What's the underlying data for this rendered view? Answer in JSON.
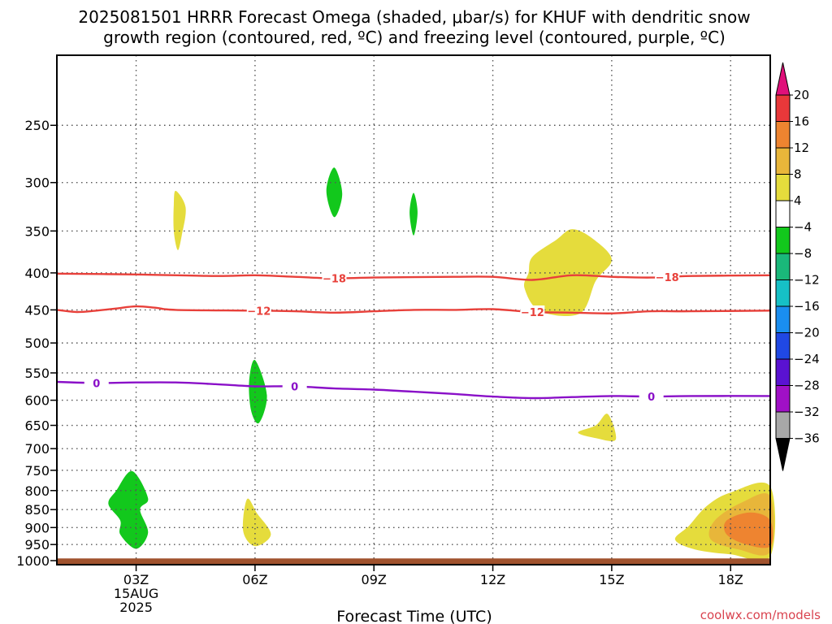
{
  "title_line1": "2025081501 HRRR Forecast Omega (shaded, μbar/s) for KHUF with dendritic snow",
  "title_line2": "growth region (contoured, red, ºC) and freezing level (contoured, purple, ºC)",
  "credit": "coolwx.com/models",
  "chart_data": {
    "type": "contour",
    "title": "2025081501 HRRR Forecast Omega (shaded, μbar/s) for KHUF with dendritic snow growth region (contoured, red, ºC) and freezing level (contoured, purple, ºC)",
    "xlabel": "Forecast Time (UTC)",
    "ylabel": "",
    "x_ticks": [
      {
        "h": 3,
        "label": "03Z",
        "sub1": "15AUG",
        "sub2": "2025"
      },
      {
        "h": 6,
        "label": "06Z",
        "sub1": "",
        "sub2": ""
      },
      {
        "h": 9,
        "label": "09Z",
        "sub1": "",
        "sub2": ""
      },
      {
        "h": 12,
        "label": "12Z",
        "sub1": "",
        "sub2": ""
      },
      {
        "h": 15,
        "label": "15Z",
        "sub1": "",
        "sub2": ""
      },
      {
        "h": 18,
        "label": "18Z",
        "sub1": "",
        "sub2": ""
      }
    ],
    "xlim_hours_utc": [
      1,
      19
    ],
    "y_ticks_hpa": [
      250,
      300,
      350,
      400,
      450,
      500,
      550,
      600,
      650,
      700,
      750,
      800,
      850,
      900,
      950,
      1000
    ],
    "ylim_hpa": [
      200,
      1013
    ],
    "y_scale": "log",
    "grid": true,
    "surface_pressure_hpa": 993,
    "colors": {
      "surface": "#a0522d",
      "dgz": "#e8403a",
      "freezing": "#8a10c8",
      "grid": "#555555"
    },
    "colorbar": {
      "ticks": [
        "20",
        "16",
        "12",
        "8",
        "4",
        "−4",
        "−8",
        "−12",
        "−16",
        "−20",
        "−24",
        "−28",
        "−32",
        "−36"
      ],
      "colors": [
        "#e8383a",
        "#ee8430",
        "#e8b63a",
        "#e5dc3c",
        "#ffffff",
        "#12c81c",
        "#1ab87a",
        "#16c0c6",
        "#1a8ef0",
        "#2048e4",
        "#5a12d2",
        "#a010c6",
        "#a8a8a8"
      ],
      "top_color": "#e0107a",
      "bottom_color": "#000000"
    },
    "contours": [
      {
        "name": "dgz_-18",
        "color": "#e8403a",
        "label": "−18",
        "points": [
          [
            1,
            401
          ],
          [
            3,
            402
          ],
          [
            5,
            404
          ],
          [
            6,
            403
          ],
          [
            7,
            405
          ],
          [
            8,
            407
          ],
          [
            9,
            406
          ],
          [
            11,
            405
          ],
          [
            12,
            405
          ],
          [
            13,
            409
          ],
          [
            14,
            403
          ],
          [
            15,
            405
          ],
          [
            16,
            406
          ],
          [
            17,
            404
          ],
          [
            19,
            403
          ]
        ],
        "label_hours": [
          8.0,
          16.4
        ]
      },
      {
        "name": "dgz_-12",
        "color": "#e8403a",
        "label": "−12",
        "points": [
          [
            1,
            450
          ],
          [
            1.5,
            453
          ],
          [
            2,
            451
          ],
          [
            2.5,
            448
          ],
          [
            3,
            445
          ],
          [
            3.5,
            447
          ],
          [
            4,
            450
          ],
          [
            6,
            451
          ],
          [
            7,
            452
          ],
          [
            8,
            454
          ],
          [
            9,
            452
          ],
          [
            10,
            450
          ],
          [
            11,
            450
          ],
          [
            12,
            449
          ],
          [
            13,
            453
          ],
          [
            14,
            454
          ],
          [
            15,
            455
          ],
          [
            16,
            452
          ],
          [
            17,
            452
          ],
          [
            19,
            451
          ]
        ],
        "label_hours": [
          6.1,
          13.0
        ]
      },
      {
        "name": "freezing_0",
        "color": "#8a10c8",
        "label": "0",
        "points": [
          [
            1,
            566
          ],
          [
            2,
            568
          ],
          [
            3,
            567
          ],
          [
            4,
            567
          ],
          [
            5,
            570
          ],
          [
            6,
            574
          ],
          [
            7,
            574
          ],
          [
            8,
            578
          ],
          [
            9,
            580
          ],
          [
            10,
            584
          ],
          [
            11,
            588
          ],
          [
            12,
            593
          ],
          [
            13,
            596
          ],
          [
            14,
            594
          ],
          [
            15,
            592
          ],
          [
            16,
            593
          ],
          [
            17,
            592
          ],
          [
            19,
            592
          ]
        ],
        "label_hours": [
          2.0,
          7.0,
          16.0
        ]
      }
    ],
    "shaded_regions": [
      {
        "value_range": [
          4,
          8
        ],
        "color": "#e5dc3c",
        "points": [
          [
            4.0,
            308
          ],
          [
            4.25,
            325
          ],
          [
            4.15,
            355
          ],
          [
            4.05,
            372
          ],
          [
            3.95,
            350
          ],
          [
            3.95,
            322
          ]
        ]
      },
      {
        "value_range": [
          -8,
          -4
        ],
        "color": "#12c81c",
        "points": [
          [
            8.0,
            286
          ],
          [
            8.2,
            311
          ],
          [
            8.0,
            335
          ],
          [
            7.8,
            308
          ]
        ]
      },
      {
        "value_range": [
          -8,
          -4
        ],
        "color": "#12c81c",
        "points": [
          [
            10.0,
            310
          ],
          [
            10.1,
            330
          ],
          [
            10.0,
            355
          ],
          [
            9.9,
            330
          ]
        ]
      },
      {
        "value_range": [
          4,
          8
        ],
        "color": "#e5dc3c",
        "points": [
          [
            13.0,
            380
          ],
          [
            13.6,
            360
          ],
          [
            14.0,
            348
          ],
          [
            14.5,
            358
          ],
          [
            15.0,
            383
          ],
          [
            14.6,
            410
          ],
          [
            14.2,
            455
          ],
          [
            13.2,
            452
          ],
          [
            12.8,
            420
          ],
          [
            12.9,
            400
          ]
        ]
      },
      {
        "value_range": [
          -8,
          -4
        ],
        "color": "#12c81c",
        "points": [
          [
            6.0,
            528
          ],
          [
            6.3,
            590
          ],
          [
            6.1,
            645
          ],
          [
            5.9,
            620
          ],
          [
            5.85,
            565
          ]
        ]
      },
      {
        "value_range": [
          4,
          8
        ],
        "color": "#e5dc3c",
        "points": [
          [
            14.9,
            627
          ],
          [
            15.1,
            680
          ],
          [
            14.6,
            677
          ],
          [
            14.15,
            665
          ],
          [
            14.6,
            650
          ]
        ]
      },
      {
        "value_range": [
          -8,
          -4
        ],
        "color": "#12c81c",
        "points": [
          [
            2.9,
            752
          ],
          [
            3.3,
            820
          ],
          [
            3.1,
            850
          ],
          [
            3.3,
            915
          ],
          [
            3.0,
            963
          ],
          [
            2.6,
            920
          ],
          [
            2.6,
            880
          ],
          [
            2.3,
            835
          ],
          [
            2.5,
            800
          ]
        ]
      },
      {
        "value_range": [
          4,
          8
        ],
        "color": "#e5dc3c",
        "points": [
          [
            5.8,
            822
          ],
          [
            6.05,
            860
          ],
          [
            6.4,
            920
          ],
          [
            6.0,
            955
          ],
          [
            5.7,
            910
          ]
        ]
      },
      {
        "value_range": [
          4,
          8
        ],
        "color": "#e5dc3c",
        "points": [
          [
            19,
            790
          ],
          [
            18.0,
            805
          ],
          [
            17.4,
            840
          ],
          [
            16.95,
            895
          ],
          [
            16.6,
            935
          ],
          [
            17.1,
            965
          ],
          [
            18.0,
            980
          ],
          [
            19,
            986
          ]
        ]
      },
      {
        "value_range": [
          8,
          12
        ],
        "color": "#e8b63a",
        "points": [
          [
            19,
            815
          ],
          [
            18.3,
            830
          ],
          [
            17.6,
            880
          ],
          [
            17.5,
            935
          ],
          [
            18.2,
            965
          ],
          [
            19,
            972
          ]
        ]
      },
      {
        "value_range": [
          12,
          16
        ],
        "color": "#ee8430",
        "points": [
          [
            19,
            880
          ],
          [
            18.5,
            858
          ],
          [
            17.9,
            880
          ],
          [
            17.9,
            920
          ],
          [
            18.4,
            950
          ],
          [
            19,
            955
          ]
        ]
      }
    ]
  }
}
